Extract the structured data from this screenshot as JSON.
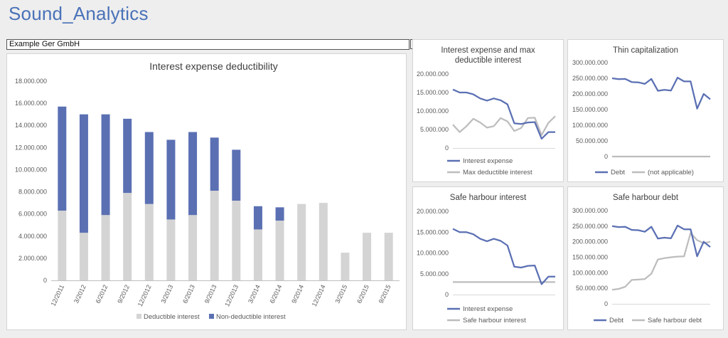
{
  "app": {
    "title": "Sound_Analytics",
    "title_mark": "."
  },
  "company_select": {
    "value": "Example Ger GmbH"
  },
  "colors": {
    "blue": "#5b70b3",
    "gray": "#d0d0d0",
    "gray_line": "#bdbdbd",
    "axis_text": "#595959"
  },
  "chart_data": [
    {
      "id": "main",
      "type": "bar",
      "stacked": true,
      "title": "Interest expense deductibility",
      "categories": [
        "12/2011",
        "3/2012",
        "6/2012",
        "9/2012",
        "12/2012",
        "3/2013",
        "6/2013",
        "9/2013",
        "12/2013",
        "3/2014",
        "6/2014",
        "9/2014",
        "12/2014",
        "3/2015",
        "6/2015",
        "9/2015"
      ],
      "series": [
        {
          "name": "Deductible interest",
          "color": "#d4d4d4",
          "values": [
            6300000,
            4300000,
            5900000,
            7900000,
            6900000,
            5500000,
            5900000,
            8100000,
            7200000,
            4600000,
            5400000,
            6900000,
            7000000,
            2500000,
            4300000,
            4300000
          ]
        },
        {
          "name": "Non-deductible interest",
          "color": "#5b70b3",
          "values": [
            9400000,
            10700000,
            9100000,
            6700000,
            6500000,
            7200000,
            7500000,
            4800000,
            4600000,
            2100000,
            1200000,
            0,
            0,
            0,
            0,
            0
          ]
        }
      ],
      "ylim": [
        0,
        18000000
      ],
      "yticks": [
        0,
        2000000,
        4000000,
        6000000,
        8000000,
        10000000,
        12000000,
        14000000,
        16000000,
        18000000
      ],
      "ytick_labels": [
        "0",
        "2.000.000",
        "4.000.000",
        "6.000.000",
        "8.000.000",
        "10.000.000",
        "12.000.000",
        "14.000.000",
        "16.000.000",
        "18.000.000"
      ],
      "legend": "bottom"
    },
    {
      "id": "max_deductible",
      "type": "line",
      "title": "Interest expense and max deductible interest",
      "title_lines": [
        "Interest expense and max",
        "deductible interest"
      ],
      "ylim": [
        0,
        20000000
      ],
      "yticks": [
        0,
        5000000,
        10000000,
        15000000,
        20000000
      ],
      "ytick_labels": [
        "0",
        "5.000.000",
        "10.000.000",
        "15.000.000",
        "20.000.000"
      ],
      "series": [
        {
          "name": "Interest expense",
          "color": "#5b70b3",
          "values": [
            15800000,
            15000000,
            15000000,
            14500000,
            13400000,
            12800000,
            13400000,
            12900000,
            11800000,
            6700000,
            6500000,
            6900000,
            7000000,
            2500000,
            4300000,
            4300000
          ]
        },
        {
          "name": "Max deductible interest",
          "color": "#bdbdbd",
          "values": [
            6300000,
            4300000,
            5900000,
            7900000,
            6900000,
            5500000,
            5900000,
            8100000,
            7200000,
            4600000,
            5400000,
            8100000,
            8200000,
            3500000,
            6800000,
            8600000
          ]
        }
      ],
      "legend": "bottom"
    },
    {
      "id": "thin_cap",
      "type": "line",
      "title": "Thin capitalization",
      "title_lines": [
        "Thin capitalization"
      ],
      "ylim": [
        0,
        300000000
      ],
      "yticks": [
        0,
        50000000,
        100000000,
        150000000,
        200000000,
        250000000,
        300000000
      ],
      "ytick_labels": [
        "0",
        "50.000.000",
        "100.000.000",
        "150.000.000",
        "200.000.000",
        "250.000.000",
        "300.000.000"
      ],
      "series": [
        {
          "name": "Debt",
          "color": "#5b70b3",
          "values": [
            250000000,
            247000000,
            248000000,
            238000000,
            237000000,
            232000000,
            248000000,
            210000000,
            213000000,
            211000000,
            252000000,
            240000000,
            240000000,
            153000000,
            200000000,
            183000000
          ]
        },
        {
          "name": "(not applicable)",
          "color": "#bdbdbd",
          "values": [
            0,
            0,
            0,
            0,
            0,
            0,
            0,
            0,
            0,
            0,
            0,
            0,
            0,
            0,
            0,
            0
          ]
        }
      ],
      "legend": "bottom"
    },
    {
      "id": "safe_interest",
      "type": "line",
      "title": "Safe harbour interest",
      "title_lines": [
        "Safe harbour interest"
      ],
      "ylim": [
        0,
        20000000
      ],
      "yticks": [
        0,
        5000000,
        10000000,
        15000000,
        20000000
      ],
      "ytick_labels": [
        "0",
        "5.000.000",
        "10.000.000",
        "15.000.000",
        "20.000.000"
      ],
      "series": [
        {
          "name": "Interest expense",
          "color": "#5b70b3",
          "values": [
            15800000,
            15000000,
            15000000,
            14500000,
            13400000,
            12800000,
            13400000,
            12900000,
            11800000,
            6700000,
            6500000,
            6900000,
            7000000,
            2500000,
            4300000,
            4300000
          ]
        },
        {
          "name": "Safe harbour interest",
          "color": "#bdbdbd",
          "values": [
            3000000,
            3000000,
            3000000,
            3000000,
            3000000,
            3000000,
            3000000,
            3000000,
            3000000,
            3000000,
            3000000,
            3000000,
            3000000,
            3000000,
            3000000,
            3000000
          ]
        }
      ],
      "legend": "bottom"
    },
    {
      "id": "safe_debt",
      "type": "line",
      "title": "Safe harbour debt",
      "title_lines": [
        "Safe harbour debt"
      ],
      "ylim": [
        0,
        300000000
      ],
      "yticks": [
        0,
        50000000,
        100000000,
        150000000,
        200000000,
        250000000,
        300000000
      ],
      "ytick_labels": [
        "0",
        "50.000.000",
        "100.000.000",
        "150.000.000",
        "200.000.000",
        "250.000.000",
        "300.000.000"
      ],
      "series": [
        {
          "name": "Debt",
          "color": "#5b70b3",
          "values": [
            250000000,
            247000000,
            248000000,
            238000000,
            237000000,
            232000000,
            248000000,
            210000000,
            213000000,
            211000000,
            252000000,
            240000000,
            240000000,
            153000000,
            200000000,
            183000000
          ]
        },
        {
          "name": "Safe harbour debt",
          "color": "#bdbdbd",
          "values": [
            45000000,
            48000000,
            55000000,
            77000000,
            78000000,
            80000000,
            97000000,
            143000000,
            147000000,
            150000000,
            152000000,
            153000000,
            228000000,
            205000000,
            195000000,
            200000000
          ]
        }
      ],
      "legend": "bottom"
    }
  ]
}
